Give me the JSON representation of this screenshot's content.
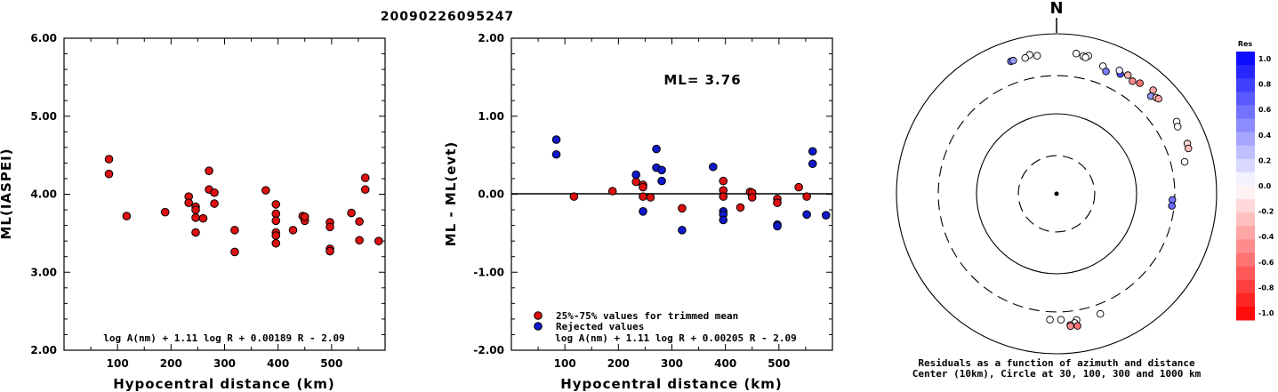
{
  "title": "20090226095247",
  "colors": {
    "accepted": "#dd1010",
    "rejected": "#1018cc",
    "res_pos_max": "#0000ff",
    "res_neg_max": "#ff0000"
  },
  "chart_data": [
    {
      "type": "scatter",
      "name": "ml-vs-distance",
      "xlabel": "Hypocentral distance (km)",
      "ylabel": "ML(IASPEI)",
      "xlim": [
        0,
        600
      ],
      "ylim": [
        2.0,
        6.0
      ],
      "xticks": [
        "100",
        "200",
        "300",
        "400",
        "500"
      ],
      "yticks": [
        "2.00",
        "3.00",
        "4.00",
        "5.00",
        "6.00"
      ],
      "formula": "log A(nm) + 1.11 log R + 0.00189 R - 2.09",
      "points": [
        [
          84,
          4.45
        ],
        [
          84,
          4.26
        ],
        [
          117,
          3.72
        ],
        [
          189,
          3.77
        ],
        [
          233,
          3.97
        ],
        [
          233,
          3.89
        ],
        [
          246,
          3.84
        ],
        [
          246,
          3.8
        ],
        [
          246,
          3.7
        ],
        [
          246,
          3.51
        ],
        [
          260,
          3.69
        ],
        [
          271,
          4.3
        ],
        [
          271,
          4.06
        ],
        [
          281,
          4.02
        ],
        [
          281,
          3.88
        ],
        [
          319,
          3.54
        ],
        [
          319,
          3.26
        ],
        [
          377,
          4.05
        ],
        [
          396,
          3.87
        ],
        [
          396,
          3.75
        ],
        [
          396,
          3.66
        ],
        [
          396,
          3.51
        ],
        [
          396,
          3.47
        ],
        [
          396,
          3.37
        ],
        [
          428,
          3.54
        ],
        [
          446,
          3.72
        ],
        [
          450,
          3.66
        ],
        [
          450,
          3.71
        ],
        [
          497,
          3.64
        ],
        [
          497,
          3.58
        ],
        [
          497,
          3.3
        ],
        [
          497,
          3.27
        ],
        [
          537,
          3.76
        ],
        [
          552,
          3.65
        ],
        [
          552,
          3.41
        ],
        [
          563,
          4.21
        ],
        [
          563,
          4.06
        ],
        [
          588,
          3.4
        ]
      ]
    },
    {
      "type": "scatter",
      "name": "residual-vs-distance",
      "xlabel": "Hypocentral distance (km)",
      "ylabel": "ML - ML(evt)",
      "xlim": [
        0,
        600
      ],
      "ylim": [
        -2.0,
        2.0
      ],
      "xticks": [
        "100",
        "200",
        "300",
        "400",
        "500"
      ],
      "yticks": [
        "-2.00",
        "-1.00",
        "0.00",
        "1.00",
        "2.00"
      ],
      "annotation": "ML= 3.76",
      "formula": "log A(nm) + 1.11 log R + 0.00205 R - 2.09",
      "series": [
        {
          "name": "25%-75% values for trimmed mean",
          "color": "#dd1010",
          "points": [
            [
              117,
              -0.03
            ],
            [
              189,
              0.04
            ],
            [
              233,
              0.16
            ],
            [
              246,
              0.12
            ],
            [
              246,
              0.09
            ],
            [
              246,
              -0.03
            ],
            [
              260,
              -0.04
            ],
            [
              319,
              -0.18
            ],
            [
              396,
              0.17
            ],
            [
              396,
              0.05
            ],
            [
              396,
              -0.03
            ],
            [
              428,
              -0.17
            ],
            [
              446,
              0.03
            ],
            [
              450,
              0.02
            ],
            [
              450,
              -0.04
            ],
            [
              497,
              -0.06
            ],
            [
              497,
              -0.11
            ],
            [
              537,
              0.09
            ],
            [
              552,
              -0.03
            ]
          ]
        },
        {
          "name": "Rejected values",
          "color": "#1018cc",
          "points": [
            [
              84,
              0.7
            ],
            [
              84,
              0.51
            ],
            [
              233,
              0.25
            ],
            [
              246,
              -0.22
            ],
            [
              271,
              0.58
            ],
            [
              271,
              0.34
            ],
            [
              281,
              0.31
            ],
            [
              281,
              0.17
            ],
            [
              319,
              -0.46
            ],
            [
              377,
              0.35
            ],
            [
              396,
              -0.22
            ],
            [
              396,
              -0.26
            ],
            [
              396,
              -0.33
            ],
            [
              497,
              -0.39
            ],
            [
              497,
              -0.41
            ],
            [
              552,
              -0.26
            ],
            [
              563,
              0.55
            ],
            [
              563,
              0.39
            ],
            [
              588,
              -0.27
            ]
          ]
        }
      ]
    },
    {
      "type": "polar",
      "name": "azimuth-distance-residuals",
      "north_label": "N",
      "caption_line1": "Residuals as a function of azimuth and distance",
      "caption_line2": "Center (10km), Circle at 30, 100, 300 and 1000 km",
      "colorbar_title": "Res",
      "colorbar_ticks": [
        "1.0",
        "0.8",
        "0.6",
        "0.4",
        "0.2",
        "0.0",
        "-0.2",
        "-0.4",
        "-0.6",
        "-0.8",
        "-1.0"
      ],
      "rings_km": [
        30,
        100,
        300,
        1000
      ],
      "stations": [
        {
          "az": 341,
          "dist": 563,
          "res": 0.55
        },
        {
          "az": 342,
          "dist": 563,
          "res": 0.39
        },
        {
          "az": 349,
          "dist": 588,
          "res": 0.0
        },
        {
          "az": 352,
          "dist": 552,
          "res": -0.03
        },
        {
          "az": 347,
          "dist": 552,
          "res": -0.03
        },
        {
          "az": 8,
          "dist": 588,
          "res": 0.0
        },
        {
          "az": 11,
          "dist": 563,
          "res": 0.0
        },
        {
          "az": 13,
          "dist": 588,
          "res": 0.0
        },
        {
          "az": 12,
          "dist": 552,
          "res": 0.0
        },
        {
          "az": 20,
          "dist": 497,
          "res": 0.0
        },
        {
          "az": 28,
          "dist": 497,
          "res": 0.7
        },
        {
          "az": 27,
          "dist": 537,
          "res": 0.09
        },
        {
          "az": 31,
          "dist": 537,
          "res": -0.3
        },
        {
          "az": 22,
          "dist": 446,
          "res": 0.51
        },
        {
          "az": 34,
          "dist": 497,
          "res": -0.45
        },
        {
          "az": 37,
          "dist": 537,
          "res": -0.55
        },
        {
          "az": 43,
          "dist": 588,
          "res": -0.35
        },
        {
          "az": 44,
          "dist": 497,
          "res": 0.41
        },
        {
          "az": 46,
          "dist": 537,
          "res": -0.25
        },
        {
          "az": 47,
          "dist": 552,
          "res": -0.35
        },
        {
          "az": 59,
          "dist": 563,
          "res": 0.0
        },
        {
          "az": 61,
          "dist": 537,
          "res": 0.0
        },
        {
          "az": 76,
          "dist": 446,
          "res": 0.0
        },
        {
          "az": 69,
          "dist": 563,
          "res": -0.15
        },
        {
          "az": 71,
          "dist": 552,
          "res": -0.25
        },
        {
          "az": 93,
          "dist": 281,
          "res": 0.55
        },
        {
          "az": 96,
          "dist": 281,
          "res": 0.58
        },
        {
          "az": 171,
          "dist": 396,
          "res": 0.0
        },
        {
          "az": 172,
          "dist": 428,
          "res": 0.0
        },
        {
          "az": 174,
          "dist": 446,
          "res": -0.2
        },
        {
          "az": 174,
          "dist": 460,
          "res": -0.45
        },
        {
          "az": 171,
          "dist": 470,
          "res": -0.55
        },
        {
          "az": 183,
          "dist": 377,
          "res": 0.0
        },
        {
          "az": 178,
          "dist": 377,
          "res": 0.0
        },
        {
          "az": 160,
          "dist": 396,
          "res": 0.0
        }
      ]
    }
  ]
}
